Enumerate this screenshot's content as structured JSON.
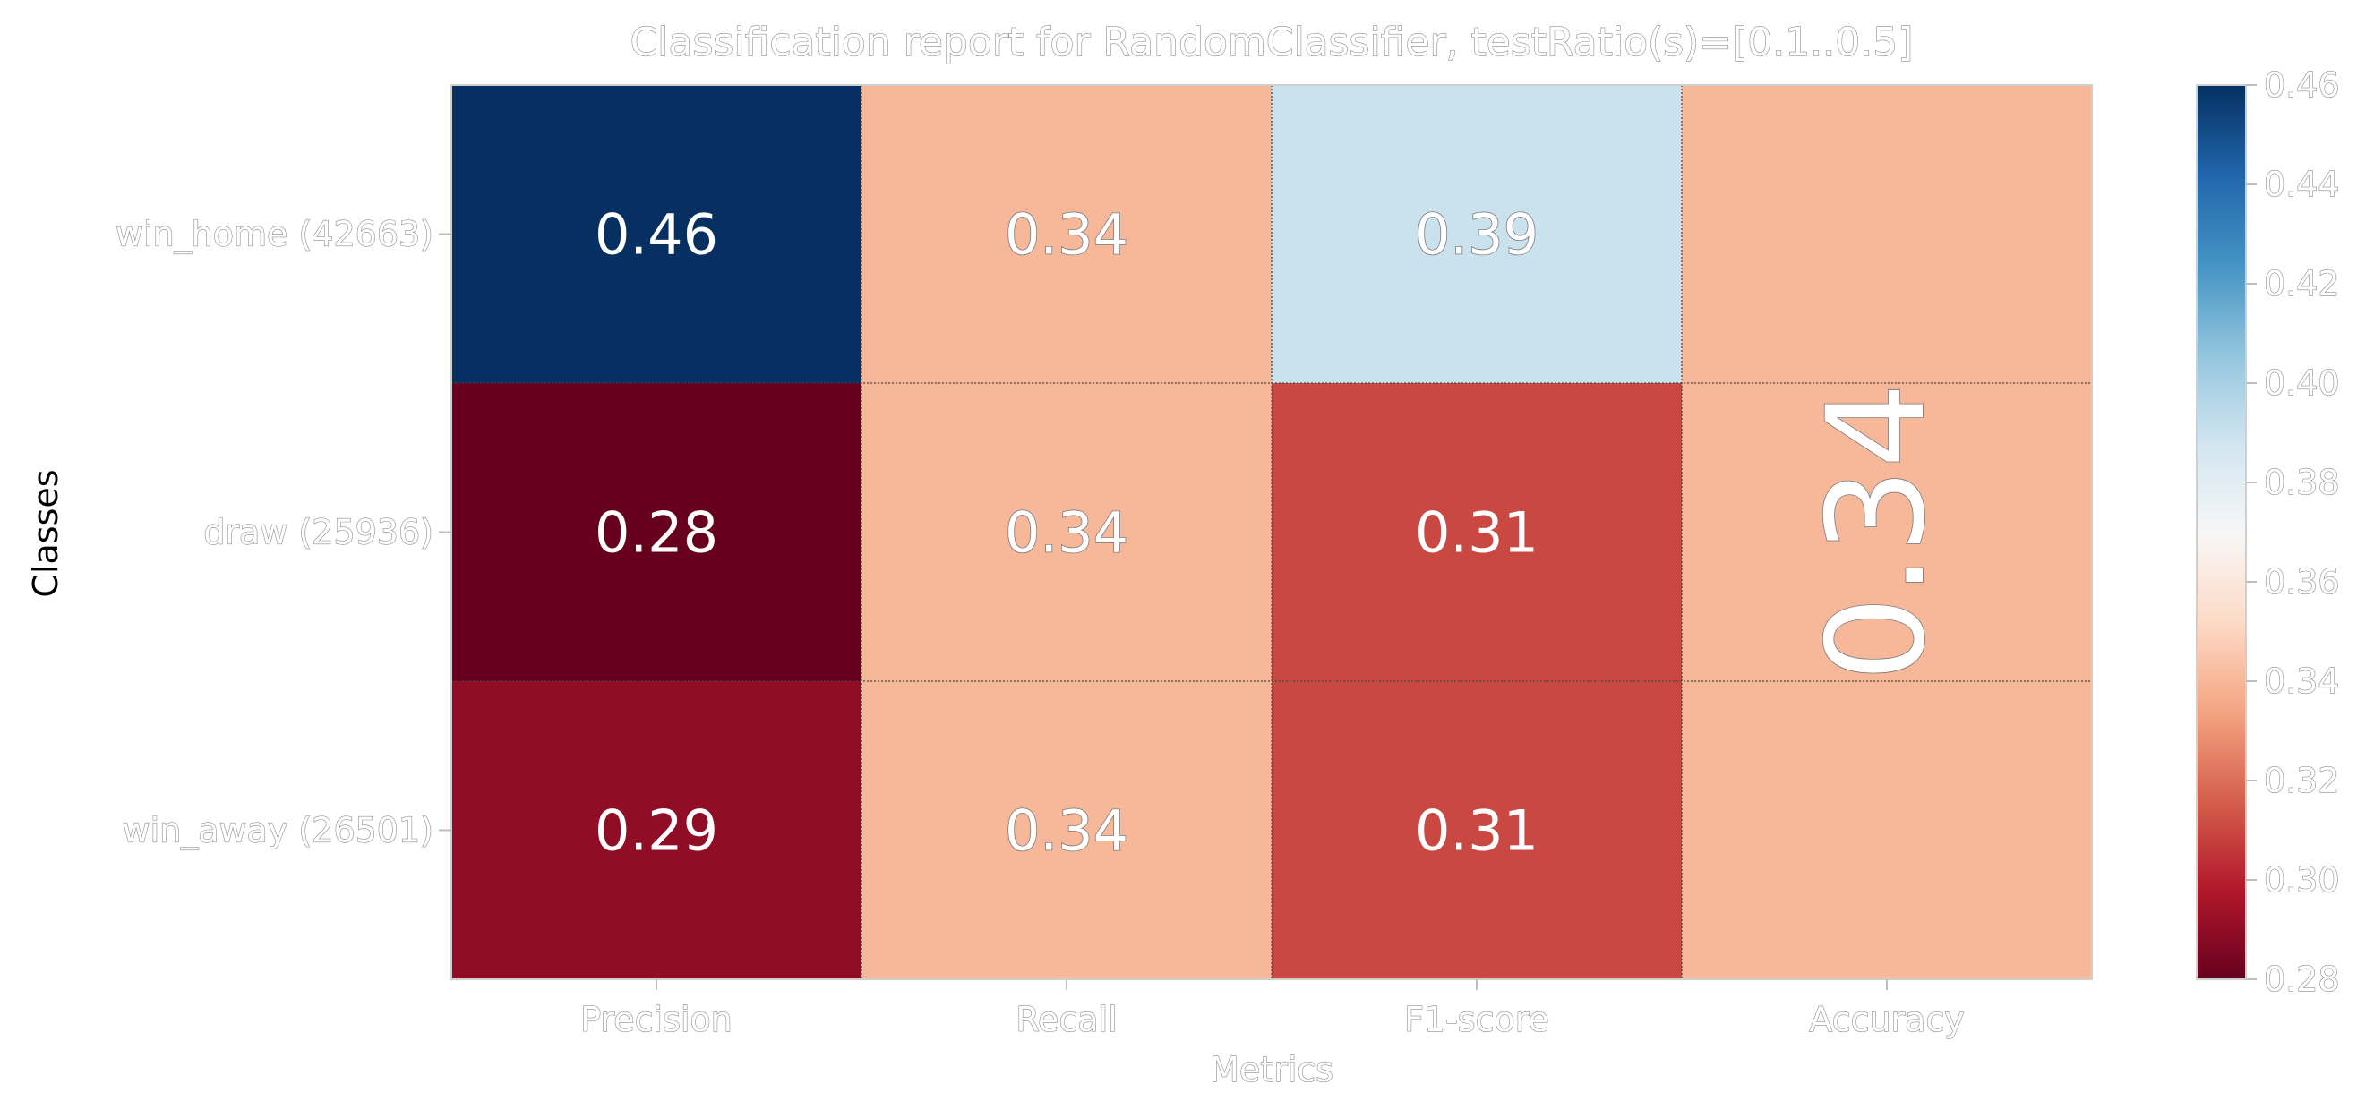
{
  "chart_data": {
    "type": "heatmap",
    "title": "Classification report for RandomClassifier, testRatio(s)=[0.1..0.5]",
    "xlabel": "Metrics",
    "ylabel": "Classes",
    "columns": [
      "Precision",
      "Recall",
      "F1-score",
      "Accuracy"
    ],
    "rows": [
      "win_home (42663)",
      "draw (25936)",
      "win_away (26501)"
    ],
    "values": [
      [
        0.46,
        0.34,
        0.39
      ],
      [
        0.28,
        0.34,
        0.31
      ],
      [
        0.29,
        0.34,
        0.31
      ]
    ],
    "value_labels": [
      [
        "0.46",
        "0.34",
        "0.39"
      ],
      [
        "0.28",
        "0.34",
        "0.31"
      ],
      [
        "0.29",
        "0.34",
        "0.31"
      ]
    ],
    "accuracy": 0.34,
    "accuracy_label": "0.34",
    "colormap": "RdBu",
    "colorbar": {
      "range": [
        0.28,
        0.46
      ],
      "ticks": [
        0.28,
        0.3,
        0.32,
        0.34,
        0.36,
        0.38,
        0.4,
        0.42,
        0.44,
        0.46
      ],
      "tick_labels": [
        "0.28",
        "0.30",
        "0.32",
        "0.34",
        "0.36",
        "0.38",
        "0.40",
        "0.42",
        "0.44",
        "0.46"
      ]
    },
    "grid": true,
    "legend": "right colorbar"
  }
}
